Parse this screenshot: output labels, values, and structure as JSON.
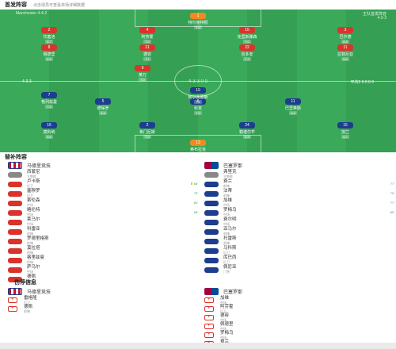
{
  "header": {
    "title": "首发阵容",
    "subtitle": "点击球员可查看单场详细数据"
  },
  "pitch": {
    "home_team": "Manchester",
    "home_formation": "4-4-2",
    "away_label": "主队首发阵容",
    "away_formation": "4-3-3",
    "home_score_text": "4-3-3",
    "away_score_text": "平均2 0 0 0 0",
    "center_text": "4-3-3 0 0",
    "home_players": [
      {
        "num": "1",
        "name": "特尔施特根",
        "rating": "7.0",
        "jersey": "gk"
      },
      {
        "num": "2",
        "name": "坎塞洛",
        "rating": "6.7",
        "jersey": "red"
      },
      {
        "num": "4",
        "name": "阿劳霍",
        "rating": "7.0",
        "jersey": "red"
      },
      {
        "num": "15",
        "name": "克里斯滕森",
        "rating": "7.0",
        "jersey": "red"
      },
      {
        "num": "3",
        "name": "巴尔德",
        "rating": "6.8",
        "jersey": "red"
      },
      {
        "num": "8",
        "name": "佩德里",
        "rating": "6.9",
        "jersey": "red"
      },
      {
        "num": "21",
        "name": "德容",
        "rating": "7.1",
        "jersey": "red"
      },
      {
        "num": "22",
        "name": "京多安",
        "rating": "7.2",
        "jersey": "red"
      },
      {
        "num": "11",
        "name": "拉菲尼亚",
        "rating": "6.6",
        "jersey": "red"
      },
      {
        "num": "9",
        "name": "莱万",
        "rating": "7.0",
        "jersey": "red"
      }
    ],
    "away_players": [
      {
        "num": "13",
        "name": "奥布拉克",
        "rating": "7.0",
        "jersey": "gk"
      },
      {
        "num": "16",
        "name": "莫利纳",
        "rating": "6.8",
        "jersey": "blue"
      },
      {
        "num": "2",
        "name": "希门尼斯",
        "rating": "7.0",
        "jersey": "blue"
      },
      {
        "num": "24",
        "name": "勒诺尔芒",
        "rating": "6.9",
        "jersey": "blue"
      },
      {
        "num": "15",
        "name": "加兰",
        "rating": "6.7",
        "jersey": "blue"
      },
      {
        "num": "5",
        "name": "德保罗",
        "rating": "6.9",
        "jersey": "blue"
      },
      {
        "num": "6",
        "name": "科克",
        "rating": "7.0",
        "jersey": "blue"
      },
      {
        "num": "11",
        "name": "巴里奥斯",
        "rating": "6.8",
        "jersey": "blue"
      },
      {
        "num": "7",
        "name": "格列兹曼",
        "rating": "7.3",
        "jersey": "blue"
      },
      {
        "num": "19",
        "name": "阿尔瓦雷斯",
        "rating": "7.2",
        "jersey": "blue"
      }
    ]
  },
  "subs": {
    "title": "替补阵容",
    "home": {
      "team": "马德里竞技",
      "players": [
        {
          "name": "西蒙尼",
          "pos": "主教练",
          "evt": ""
        },
        {
          "name": "卢卡斯",
          "pos": "后卫",
          "evt": "68'"
        },
        {
          "name": "塞穆罗",
          "pos": "后卫",
          "evt": "75'"
        },
        {
          "name": "索伦森",
          "pos": "中场",
          "evt": "80'"
        },
        {
          "name": "略伦特",
          "pos": "中场",
          "evt": "68'"
        },
        {
          "name": "莱马尔",
          "pos": "中场",
          "evt": ""
        },
        {
          "name": "科雷亚",
          "pos": "前锋",
          "evt": ""
        },
        {
          "name": "罗德里格斯",
          "pos": "前锋",
          "evt": ""
        },
        {
          "name": "莫拉塔",
          "pos": "前锋",
          "evt": ""
        },
        {
          "name": "格里兹曼",
          "pos": "前锋",
          "evt": ""
        },
        {
          "name": "萨乌尔",
          "pos": "中场",
          "evt": ""
        },
        {
          "name": "德佩",
          "pos": "前锋",
          "evt": ""
        }
      ]
    },
    "away": {
      "team": "巴塞罗那",
      "players": [
        {
          "name": "弗里克",
          "pos": "主教练",
          "evt": ""
        },
        {
          "name": "费兰",
          "pos": "前锋",
          "evt": "77'"
        },
        {
          "name": "法蒂",
          "pos": "前锋",
          "evt": "70'"
        },
        {
          "name": "加维",
          "pos": "中场",
          "evt": "77'"
        },
        {
          "name": "罗梅乌",
          "pos": "中场",
          "evt": "85'"
        },
        {
          "name": "费尔明",
          "pos": "中场",
          "evt": ""
        },
        {
          "name": "亚马尔",
          "pos": "前锋",
          "evt": ""
        },
        {
          "name": "托雷斯",
          "pos": "前锋",
          "evt": ""
        },
        {
          "name": "马科斯",
          "pos": "后卫",
          "evt": ""
        },
        {
          "name": "库巴西",
          "pos": "后卫",
          "evt": ""
        },
        {
          "name": "佩尼亚",
          "pos": "门将",
          "evt": ""
        }
      ]
    }
  },
  "injury": {
    "title": "伤停信息",
    "home": {
      "team": "马德里竞技",
      "players": [
        {
          "name": "雷格隆",
          "pos": "后卫"
        },
        {
          "name": "德佩",
          "pos": "前锋"
        }
      ]
    },
    "away": {
      "team": "巴塞罗那",
      "players": [
        {
          "name": "加维",
          "pos": "中场"
        },
        {
          "name": "阿劳霍",
          "pos": "后卫"
        },
        {
          "name": "德容",
          "pos": "中场"
        },
        {
          "name": "佩德里",
          "pos": "中场"
        },
        {
          "name": "罗梅乌",
          "pos": "中场"
        },
        {
          "name": "费兰",
          "pos": "前锋"
        }
      ]
    }
  },
  "colors": {
    "pitch": "#3aa95a",
    "home": "#d9342b",
    "away": "#1d3e8c",
    "gk": "#f08a1c"
  }
}
